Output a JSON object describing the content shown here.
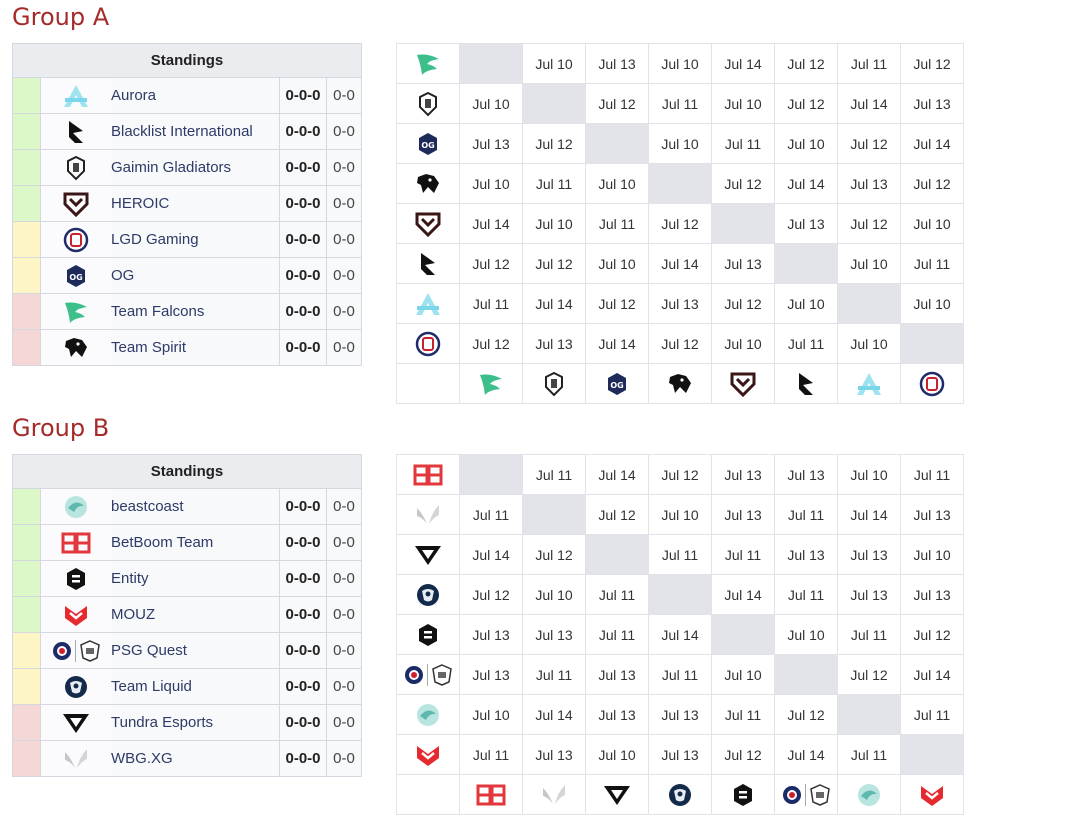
{
  "groups": [
    {
      "title": "Group A",
      "standings_header": "Standings",
      "teams": [
        {
          "name": "Aurora",
          "icon": "aurora-logo",
          "status": "adv",
          "record": "0-0-0",
          "games": "0-0"
        },
        {
          "name": "Blacklist International",
          "icon": "blacklist-logo",
          "status": "adv",
          "record": "0-0-0",
          "games": "0-0"
        },
        {
          "name": "Gaimin Gladiators",
          "icon": "gaimin-logo",
          "status": "adv",
          "record": "0-0-0",
          "games": "0-0"
        },
        {
          "name": "HEROIC",
          "icon": "heroic-logo",
          "status": "adv",
          "record": "0-0-0",
          "games": "0-0"
        },
        {
          "name": "LGD Gaming",
          "icon": "lgd-logo",
          "status": "mid",
          "record": "0-0-0",
          "games": "0-0"
        },
        {
          "name": "OG",
          "icon": "og-logo",
          "status": "mid",
          "record": "0-0-0",
          "games": "0-0"
        },
        {
          "name": "Team Falcons",
          "icon": "falcons-logo",
          "status": "out",
          "record": "0-0-0",
          "games": "0-0"
        },
        {
          "name": "Team Spirit",
          "icon": "spirit-logo",
          "status": "out",
          "record": "0-0-0",
          "games": "0-0"
        }
      ],
      "matrix_order": [
        "falcons-logo",
        "gaimin-logo",
        "og-logo",
        "spirit-logo",
        "heroic-logo",
        "blacklist-logo",
        "aurora-logo",
        "lgd-logo"
      ],
      "matrix": [
        [
          "",
          "Jul 10",
          "Jul 13",
          "Jul 10",
          "Jul 14",
          "Jul 12",
          "Jul 11",
          "Jul 12"
        ],
        [
          "Jul 10",
          "",
          "Jul 12",
          "Jul 11",
          "Jul 10",
          "Jul 12",
          "Jul 14",
          "Jul 13"
        ],
        [
          "Jul 13",
          "Jul 12",
          "",
          "Jul 10",
          "Jul 11",
          "Jul 10",
          "Jul 12",
          "Jul 14"
        ],
        [
          "Jul 10",
          "Jul 11",
          "Jul 10",
          "",
          "Jul 12",
          "Jul 14",
          "Jul 13",
          "Jul 12"
        ],
        [
          "Jul 14",
          "Jul 10",
          "Jul 11",
          "Jul 12",
          "",
          "Jul 13",
          "Jul 12",
          "Jul 10"
        ],
        [
          "Jul 12",
          "Jul 12",
          "Jul 10",
          "Jul 14",
          "Jul 13",
          "",
          "Jul 10",
          "Jul 11"
        ],
        [
          "Jul 11",
          "Jul 14",
          "Jul 12",
          "Jul 13",
          "Jul 12",
          "Jul 10",
          "",
          "Jul 10"
        ],
        [
          "Jul 12",
          "Jul 13",
          "Jul 14",
          "Jul 12",
          "Jul 10",
          "Jul 11",
          "Jul 10",
          ""
        ]
      ]
    },
    {
      "title": "Group B",
      "standings_header": "Standings",
      "teams": [
        {
          "name": "beastcoast",
          "icon": "beastcoast-logo",
          "status": "adv",
          "record": "0-0-0",
          "games": "0-0"
        },
        {
          "name": "BetBoom Team",
          "icon": "betboom-logo",
          "status": "adv",
          "record": "0-0-0",
          "games": "0-0"
        },
        {
          "name": "Entity",
          "icon": "entity-logo",
          "status": "adv",
          "record": "0-0-0",
          "games": "0-0"
        },
        {
          "name": "MOUZ",
          "icon": "mouz-logo",
          "status": "adv",
          "record": "0-0-0",
          "games": "0-0"
        },
        {
          "name": "PSG Quest",
          "icon": "psg-quest-logo",
          "status": "mid",
          "record": "0-0-0",
          "games": "0-0"
        },
        {
          "name": "Team Liquid",
          "icon": "liquid-logo",
          "status": "mid",
          "record": "0-0-0",
          "games": "0-0"
        },
        {
          "name": "Tundra Esports",
          "icon": "tundra-logo",
          "status": "out",
          "record": "0-0-0",
          "games": "0-0"
        },
        {
          "name": "WBG.XG",
          "icon": "wbg-logo",
          "status": "out",
          "record": "0-0-0",
          "games": "0-0"
        }
      ],
      "matrix_order": [
        "betboom-logo",
        "wbg-logo",
        "tundra-logo",
        "liquid-logo",
        "entity-logo",
        "psg-quest-logo",
        "beastcoast-logo",
        "mouz-logo"
      ],
      "matrix": [
        [
          "",
          "Jul 11",
          "Jul 14",
          "Jul 12",
          "Jul 13",
          "Jul 13",
          "Jul 10",
          "Jul 11"
        ],
        [
          "Jul 11",
          "",
          "Jul 12",
          "Jul 10",
          "Jul 13",
          "Jul 11",
          "Jul 14",
          "Jul 13"
        ],
        [
          "Jul 14",
          "Jul 12",
          "",
          "Jul 11",
          "Jul 11",
          "Jul 13",
          "Jul 13",
          "Jul 10"
        ],
        [
          "Jul 12",
          "Jul 10",
          "Jul 11",
          "",
          "Jul 14",
          "Jul 11",
          "Jul 13",
          "Jul 13"
        ],
        [
          "Jul 13",
          "Jul 13",
          "Jul 11",
          "Jul 14",
          "",
          "Jul 10",
          "Jul 11",
          "Jul 12"
        ],
        [
          "Jul 13",
          "Jul 11",
          "Jul 13",
          "Jul 11",
          "Jul 10",
          "",
          "Jul 12",
          "Jul 14"
        ],
        [
          "Jul 10",
          "Jul 14",
          "Jul 13",
          "Jul 13",
          "Jul 11",
          "Jul 12",
          "",
          "Jul 11"
        ],
        [
          "Jul 11",
          "Jul 13",
          "Jul 10",
          "Jul 13",
          "Jul 12",
          "Jul 14",
          "Jul 11",
          ""
        ]
      ]
    }
  ]
}
